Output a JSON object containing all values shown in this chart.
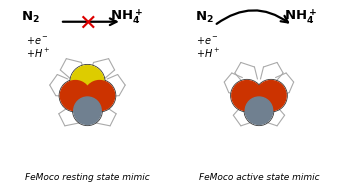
{
  "bg_color": "#ffffff",
  "x_color": "#dd0000",
  "fe_color": "#cc3300",
  "s_color": "#ddcc00",
  "mo_color": "#708090",
  "bond_color": "#111111",
  "ligand_color": "#aaaaaa",
  "panel_left_label": "FeMoco resting state mimic",
  "panel_right_label": "FeMoco active state mimic"
}
